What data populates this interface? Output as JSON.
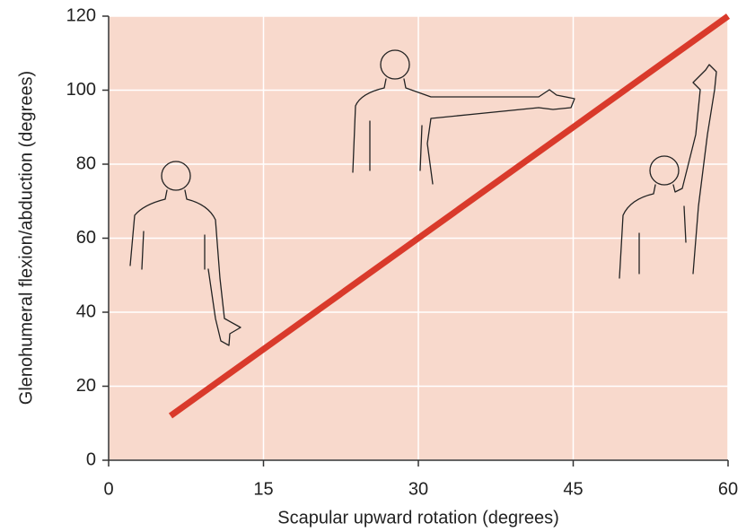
{
  "chart_data": {
    "type": "line",
    "x_label": "Scapular upward rotation (degrees)",
    "y_label": "Glenohumeral flexion/abduction (degrees)",
    "x": [
      6,
      60
    ],
    "values": [
      12,
      120
    ],
    "color": "#d93a2b",
    "xlim": [
      0,
      60
    ],
    "xticks": [
      0,
      15,
      30,
      45,
      60
    ],
    "ylim": [
      0,
      120
    ],
    "yticks": [
      0,
      20,
      40,
      60,
      80,
      100,
      120
    ],
    "grid": true
  }
}
